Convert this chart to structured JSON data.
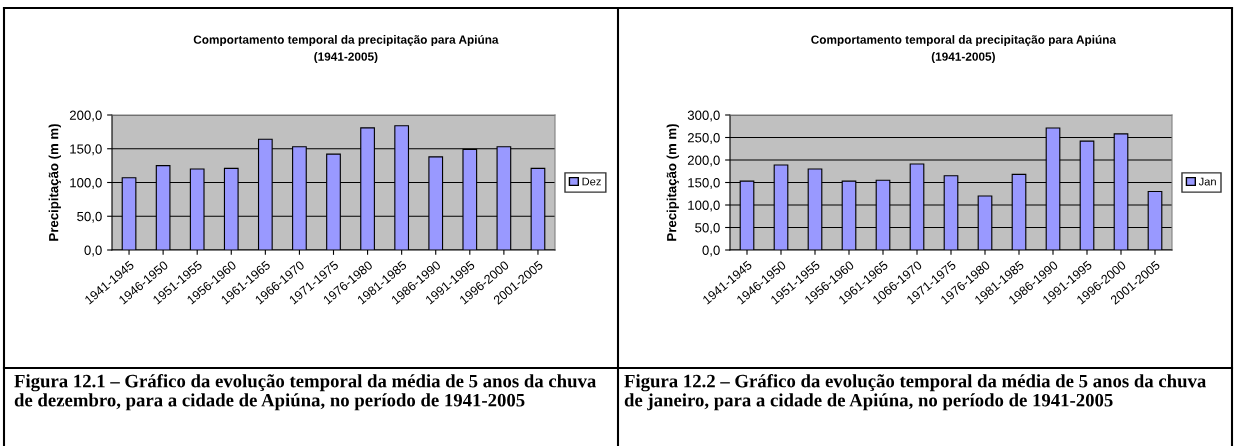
{
  "chart_data": [
    {
      "type": "bar",
      "title": "Comportamento temporal da precipitação para Apiúna\n(1941-2005)",
      "ylabel": "Precipitação (m m)",
      "categories": [
        "1941-1945",
        "1946-1950",
        "1951-1955",
        "1956-1960",
        "1961-1965",
        "1966-1970",
        "1971-1975",
        "1976-1980",
        "1981-1985",
        "1986-1990",
        "1991-1995",
        "1996-2000",
        "2001-2005"
      ],
      "series": [
        {
          "name": "Dez",
          "color": "#9999ff",
          "values": [
            107,
            125,
            120,
            121,
            164,
            153,
            142,
            181,
            184,
            138,
            149,
            153,
            121
          ]
        }
      ],
      "ylim": [
        0,
        200
      ],
      "yticks": [
        {
          "value": 0,
          "label": "0,0"
        },
        {
          "value": 50,
          "label": "50,0"
        },
        {
          "value": 100,
          "label": "100,0"
        },
        {
          "value": 150,
          "label": "150,0"
        },
        {
          "value": 200,
          "label": "200,0"
        }
      ],
      "grid": "y",
      "legend": "right",
      "annotations": [
        "Figura 12.1 – Gráfico da evolução temporal da média de 5 anos da chuva de dezembro, para a cidade de Apiúna, no período de 1941-2005"
      ]
    },
    {
      "type": "bar",
      "title": "Comportamento temporal da precipitação para Apiúna\n(1941-2005)",
      "ylabel": "Precipitação (m m)",
      "categories": [
        "1941-1945",
        "1946-1950",
        "1951-1955",
        "1956-1960",
        "1961-1965",
        "1066-1970",
        "1971-1975",
        "1976-1980",
        "1981-1985",
        "1986-1990",
        "1991-1995",
        "1996-2000",
        "2001-2005"
      ],
      "series": [
        {
          "name": "Jan",
          "color": "#9999ff",
          "values": [
            153,
            189,
            180,
            153,
            155,
            191,
            165,
            120,
            168,
            271,
            242,
            258,
            130
          ]
        }
      ],
      "ylim": [
        0,
        300
      ],
      "yticks": [
        {
          "value": 0,
          "label": "0,0"
        },
        {
          "value": 50,
          "label": "50,0"
        },
        {
          "value": 100,
          "label": "100,0"
        },
        {
          "value": 150,
          "label": "150,0"
        },
        {
          "value": 200,
          "label": "200,0"
        },
        {
          "value": 250,
          "label": "250,0"
        },
        {
          "value": 300,
          "label": "300,0"
        }
      ],
      "grid": "y",
      "legend": "right",
      "annotations": [
        "Figura 12.2 – Gráfico da evolução temporal da média de 5 anos da chuva de janeiro, para a cidade de Apiúna, no período de 1941-2005"
      ]
    }
  ]
}
